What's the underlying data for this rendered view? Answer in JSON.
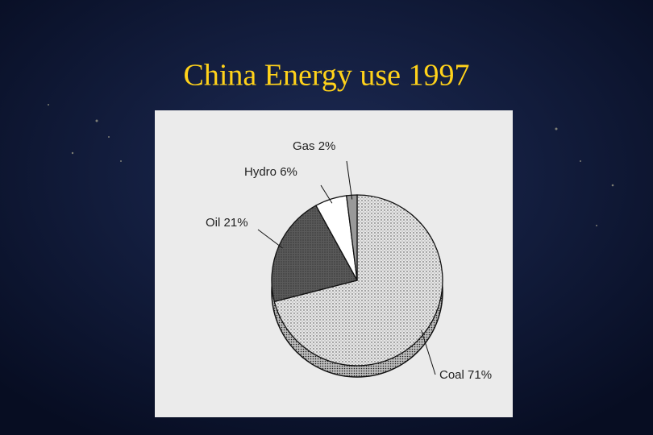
{
  "chart_data": {
    "type": "pie",
    "title": "China Energy use 1997",
    "categories": [
      "Coal",
      "Oil",
      "Hydro",
      "Gas"
    ],
    "values": [
      71,
      21,
      6,
      2
    ],
    "value_labels": [
      "71%",
      "21%",
      "6%",
      "2%"
    ],
    "colors": [
      "#d8d8d8",
      "#555555",
      "#ffffff",
      "#999999"
    ]
  }
}
